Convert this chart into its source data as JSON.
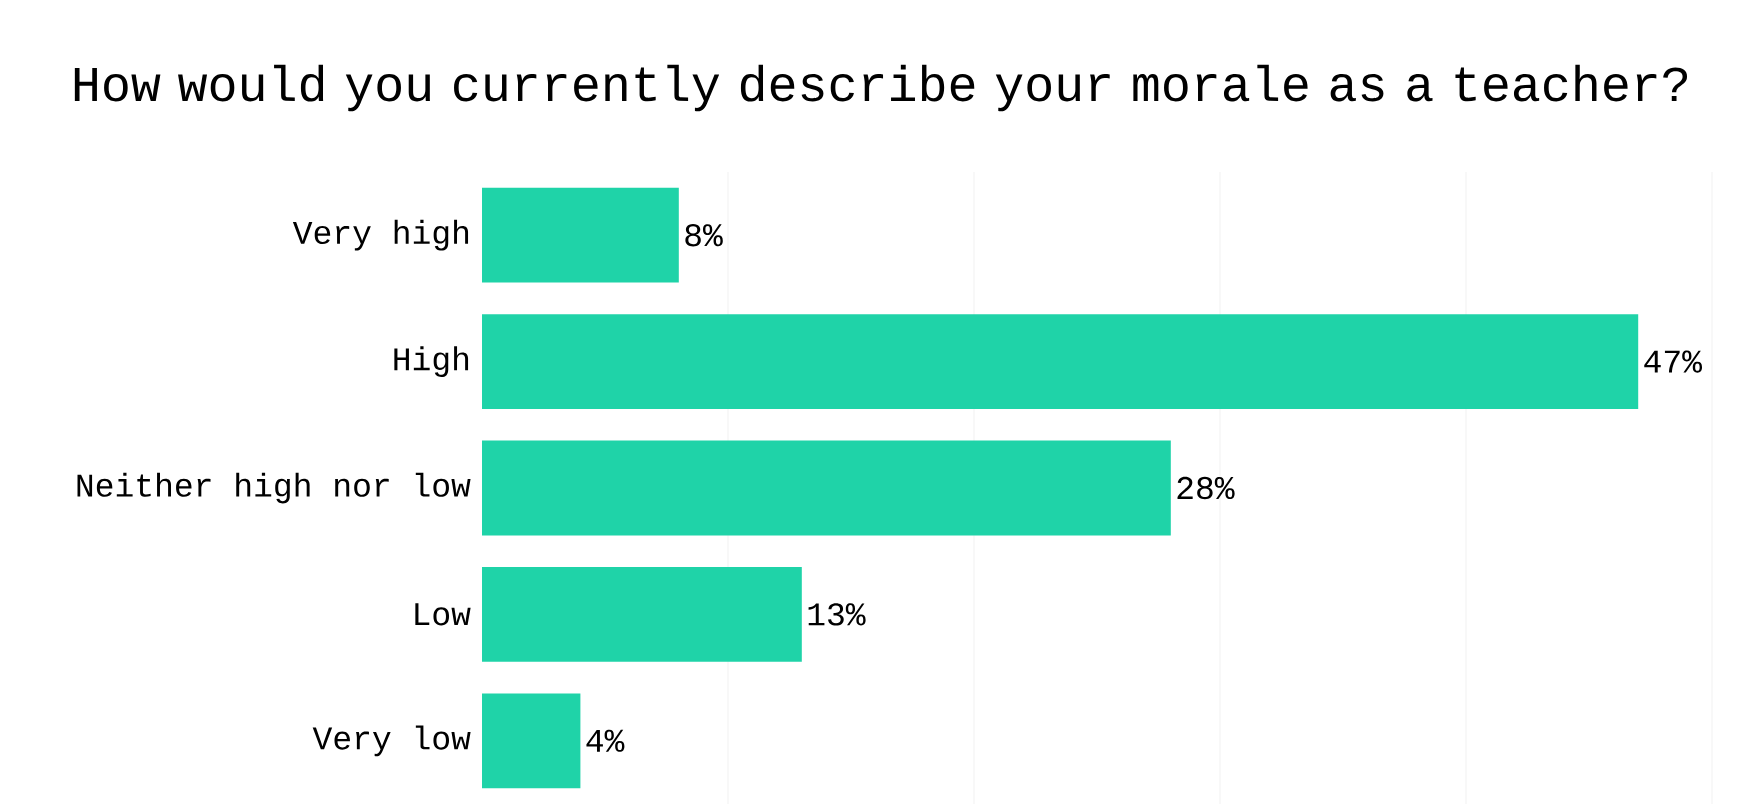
{
  "chart_data": {
    "type": "bar",
    "orientation": "horizontal",
    "title": "How would you currently describe your morale as a teacher?",
    "categories": [
      "Very high",
      "High",
      "Neither high nor low",
      "Low",
      "Very low"
    ],
    "values": [
      8,
      47,
      28,
      13,
      4
    ],
    "value_labels": [
      "8%",
      "47%",
      "28%",
      "13%",
      "4%"
    ],
    "color": "#1fd3a8",
    "xlim": [
      0,
      50
    ],
    "xticks": [
      {
        "value": 10,
        "label": null
      },
      {
        "value": 20,
        "label": null
      },
      {
        "value": 30,
        "label": null
      },
      {
        "value": 40,
        "label": null
      },
      {
        "value": 50,
        "label": null
      }
    ],
    "grid": "x",
    "tick_labels": "y"
  }
}
